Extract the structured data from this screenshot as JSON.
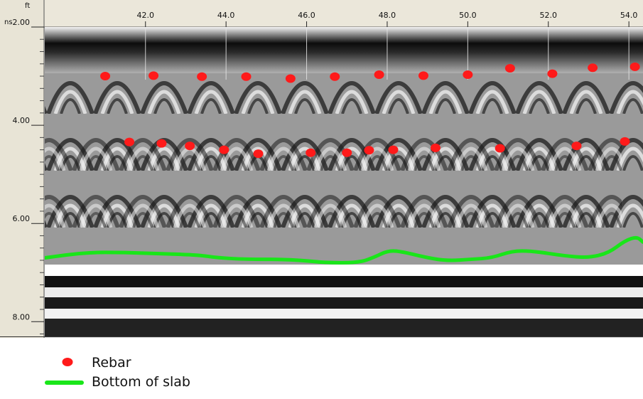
{
  "chart_data": {
    "type": "scatter",
    "x_unit": "ft",
    "y_unit": "ns",
    "xlim": [
      39.5,
      54.35
    ],
    "ylim": [
      2.0,
      8.3
    ],
    "x_ticks": [
      {
        "value": 42.0,
        "label": "42.0"
      },
      {
        "value": 44.0,
        "label": "44.0"
      },
      {
        "value": 46.0,
        "label": "46.0"
      },
      {
        "value": 48.0,
        "label": "48.0"
      },
      {
        "value": 50.0,
        "label": "50.0"
      },
      {
        "value": 52.0,
        "label": "52.0"
      },
      {
        "value": 54.0,
        "label": "54.0"
      }
    ],
    "y_ticks": [
      {
        "value": 2.0,
        "label": "2.00"
      },
      {
        "value": 4.0,
        "label": "4.00"
      },
      {
        "value": 6.0,
        "label": "6.00"
      },
      {
        "value": 8.0,
        "label": "8.00"
      }
    ],
    "series": [
      {
        "name": "Rebar",
        "kind": "points",
        "color": "#ff1a1a",
        "points": [
          [
            41.0,
            3.0
          ],
          [
            42.2,
            2.99
          ],
          [
            43.4,
            3.01
          ],
          [
            44.5,
            3.01
          ],
          [
            45.6,
            3.05
          ],
          [
            46.7,
            3.01
          ],
          [
            47.8,
            2.97
          ],
          [
            48.9,
            2.99
          ],
          [
            50.0,
            2.97
          ],
          [
            51.05,
            2.84
          ],
          [
            52.1,
            2.95
          ],
          [
            53.1,
            2.83
          ],
          [
            54.15,
            2.81
          ],
          [
            41.6,
            4.34
          ],
          [
            42.4,
            4.37
          ],
          [
            43.1,
            4.42
          ],
          [
            43.95,
            4.5
          ],
          [
            44.8,
            4.58
          ],
          [
            46.1,
            4.56
          ],
          [
            47.0,
            4.56
          ],
          [
            47.55,
            4.51
          ],
          [
            48.15,
            4.5
          ],
          [
            49.2,
            4.46
          ],
          [
            50.8,
            4.47
          ],
          [
            52.7,
            4.42
          ],
          [
            53.9,
            4.33
          ]
        ]
      },
      {
        "name": "Bottom of slab",
        "kind": "line",
        "color": "#19e619",
        "points": [
          [
            39.5,
            6.7
          ],
          [
            40.5,
            6.59
          ],
          [
            41.5,
            6.59
          ],
          [
            42.5,
            6.62
          ],
          [
            43.3,
            6.64
          ],
          [
            43.8,
            6.7
          ],
          [
            44.5,
            6.73
          ],
          [
            45.4,
            6.73
          ],
          [
            46.0,
            6.76
          ],
          [
            46.5,
            6.8
          ],
          [
            47.3,
            6.8
          ],
          [
            47.7,
            6.68
          ],
          [
            48.0,
            6.56
          ],
          [
            48.3,
            6.56
          ],
          [
            49.0,
            6.7
          ],
          [
            49.5,
            6.76
          ],
          [
            50.1,
            6.73
          ],
          [
            50.6,
            6.7
          ],
          [
            51.1,
            6.56
          ],
          [
            51.6,
            6.56
          ],
          [
            52.4,
            6.66
          ],
          [
            53.0,
            6.7
          ],
          [
            53.5,
            6.6
          ],
          [
            53.9,
            6.35
          ],
          [
            54.2,
            6.27
          ],
          [
            54.35,
            6.38
          ]
        ]
      }
    ]
  }
}
